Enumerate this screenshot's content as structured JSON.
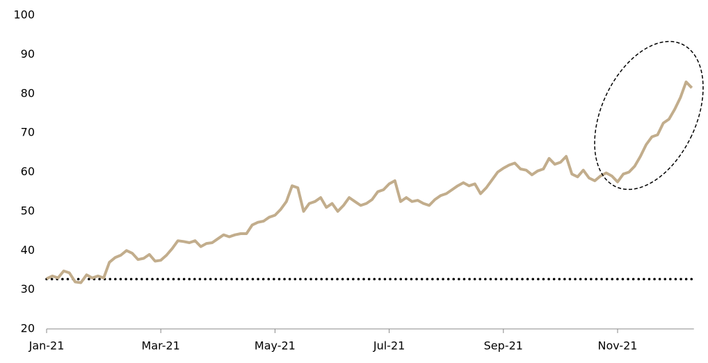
{
  "chart_data": {
    "type": "line",
    "categories": [
      "Jan-21",
      null,
      null,
      null,
      null,
      null,
      null,
      null,
      null,
      null,
      null,
      null,
      null,
      null,
      null,
      null,
      null,
      null,
      null,
      null,
      "Mar-21",
      null,
      null,
      null,
      null,
      null,
      null,
      null,
      null,
      null,
      null,
      null,
      null,
      null,
      null,
      null,
      null,
      null,
      null,
      null,
      "May-21",
      null,
      null,
      null,
      null,
      null,
      null,
      null,
      null,
      null,
      null,
      null,
      null,
      null,
      null,
      null,
      null,
      null,
      null,
      null,
      "Jul-21",
      null,
      null,
      null,
      null,
      null,
      null,
      null,
      null,
      null,
      null,
      null,
      null,
      null,
      null,
      null,
      null,
      null,
      null,
      null,
      "Sep-21",
      null,
      null,
      null,
      null,
      null,
      null,
      null,
      null,
      null,
      null,
      null,
      null,
      null,
      null,
      null,
      null,
      null,
      null,
      null,
      "Nov-21",
      null,
      null,
      null,
      null,
      null,
      null,
      null,
      null,
      null,
      null,
      null,
      null,
      null
    ],
    "values": [
      32.8,
      33.5,
      33.0,
      34.8,
      34.3,
      32.0,
      31.8,
      33.8,
      33.0,
      33.5,
      33.0,
      37,
      38.2,
      38.8,
      40,
      39.3,
      37.7,
      38,
      39,
      37.3,
      37.5,
      38.8,
      40.5,
      42.5,
      42.3,
      42,
      42.5,
      41,
      41.8,
      42,
      43,
      44,
      43.5,
      44,
      44.3,
      44.3,
      46.5,
      47.2,
      47.5,
      48.5,
      49,
      50.5,
      52.5,
      56.5,
      56,
      50,
      52,
      52.5,
      53.5,
      51,
      52,
      50,
      51.5,
      53.5,
      52.5,
      51.5,
      52,
      53,
      55,
      55.5,
      57,
      57.8,
      52.5,
      53.5,
      52.5,
      52.8,
      52,
      51.5,
      53,
      54,
      54.5,
      55.5,
      56.5,
      57.3,
      56.5,
      57,
      54.5,
      56,
      58,
      60,
      61,
      61.8,
      62.3,
      60.8,
      60.5,
      59.3,
      60.3,
      60.8,
      63.5,
      62,
      62.5,
      64,
      59.5,
      58.8,
      60.5,
      58.5,
      57.8,
      59,
      59.8,
      59,
      57.5,
      59.5,
      60,
      61.5,
      64,
      67,
      69,
      69.5,
      72.5,
      73.5,
      76,
      79,
      83,
      81.5
    ],
    "color": "#c2ad8c",
    "reference_line": 32.7,
    "ylim": [
      20,
      100
    ],
    "yticks": [
      20,
      30,
      40,
      50,
      60,
      70,
      80,
      90,
      100
    ],
    "grid": false
  }
}
